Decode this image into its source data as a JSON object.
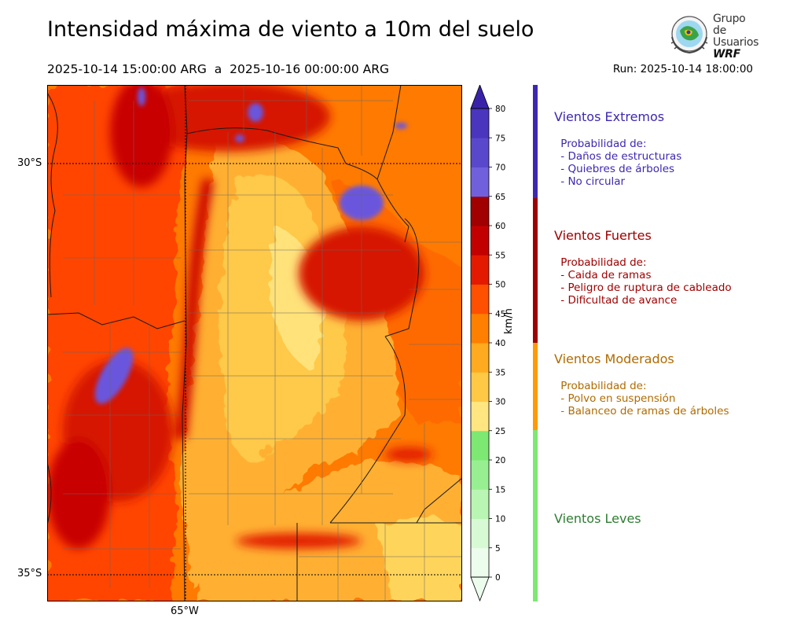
{
  "header": {
    "title": "Intensidad máxima de viento a 10m del suelo",
    "period": "2025-10-14 15:00:00 ARG  a  2025-10-16 00:00:00 ARG",
    "run": "Run: 2025-10-14 18:00:00"
  },
  "logo": {
    "line1": "Grupo de",
    "line2": "Usuarios",
    "line3": "WRF"
  },
  "map": {
    "lat_labels": [
      "30°S",
      "35°S"
    ],
    "lon_labels": [
      "65°W"
    ]
  },
  "colorbar": {
    "unit": "km/h",
    "ticks": [
      "0",
      "5",
      "10",
      "15",
      "20",
      "25",
      "30",
      "35",
      "40",
      "45",
      "50",
      "55",
      "60",
      "65",
      "70",
      "75",
      "80"
    ],
    "colors": [
      "#edfded",
      "#d7fad5",
      "#b9f5b3",
      "#98ef92",
      "#7de872",
      "#ffe680",
      "#ffc845",
      "#ffaa1f",
      "#ff7f00",
      "#ff4f00",
      "#e41a00",
      "#c30000",
      "#a00000",
      "#7060dc",
      "#5a48cc",
      "#4a35be",
      "#3a22a8"
    ],
    "extend_color": "#3a22a8"
  },
  "categories": [
    {
      "title": "Vientos Extremos",
      "color": "#3e27b1",
      "text_color": "#3e27b1",
      "desc": [
        " Probabilidad de:",
        " - Daños de estructuras",
        " - Quiebres de árboles",
        " - No circular"
      ]
    },
    {
      "title": "Vientos Fuertes",
      "color": "#a00000",
      "text_color": "#a00000",
      "desc": [
        " Probabilidad de:",
        " - Caida de ramas",
        " - Peligro de ruptura de cableado",
        " - Dificultad de avance"
      ]
    },
    {
      "title": "Vientos Moderados",
      "color": "#ff9a00",
      "text_color": "#b06b00",
      "desc": [
        " Probabilidad de:",
        " - Polvo en suspensión",
        " - Balanceo de ramas de árboles"
      ]
    },
    {
      "title": "Vientos Leves",
      "color": "#7de872",
      "text_color": "#2e7d32",
      "desc": []
    }
  ]
}
